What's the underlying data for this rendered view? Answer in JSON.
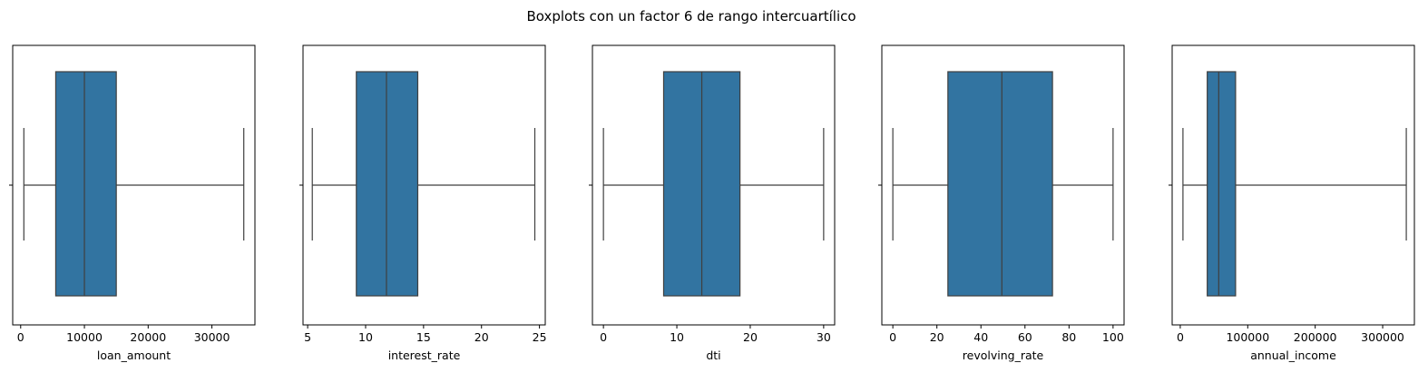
{
  "title": "Boxplots con un factor 6 de rango intercuartílico",
  "box_color": "#3274a1",
  "line_color": "#3f3f3f",
  "chart_data": [
    {
      "type": "box",
      "xlabel": "loan_amount",
      "xlim": [
        -1250,
        36750
      ],
      "ticks": [
        0,
        10000,
        20000,
        30000
      ],
      "tick_labels": [
        "0",
        "10000",
        "20000",
        "30000"
      ],
      "whisker_low": 500,
      "q1": 5500,
      "median": 10000,
      "q3": 15000,
      "whisker_high": 35000
    },
    {
      "type": "box",
      "xlabel": "interest_rate",
      "xlim": [
        4.6,
        25.5
      ],
      "ticks": [
        5,
        10,
        15,
        20,
        25
      ],
      "tick_labels": [
        "5",
        "10",
        "15",
        "20",
        "25"
      ],
      "whisker_low": 5.4,
      "q1": 9.2,
      "median": 11.8,
      "q3": 14.5,
      "whisker_high": 24.6
    },
    {
      "type": "box",
      "xlabel": "dti",
      "xlim": [
        -1.5,
        31.5
      ],
      "ticks": [
        0,
        10,
        20,
        30
      ],
      "tick_labels": [
        "0",
        "10",
        "20",
        "30"
      ],
      "whisker_low": 0,
      "q1": 8.2,
      "median": 13.4,
      "q3": 18.6,
      "whisker_high": 30
    },
    {
      "type": "box",
      "xlabel": "revolving_rate",
      "xlim": [
        -5,
        105
      ],
      "ticks": [
        0,
        20,
        40,
        60,
        80,
        100
      ],
      "tick_labels": [
        "0",
        "20",
        "40",
        "60",
        "80",
        "100"
      ],
      "whisker_low": 0,
      "q1": 25,
      "median": 49.5,
      "q3": 72.5,
      "whisker_high": 100
    },
    {
      "type": "box",
      "xlabel": "annual_income",
      "xlim": [
        -12000,
        347000
      ],
      "ticks": [
        0,
        100000,
        200000,
        300000
      ],
      "tick_labels": [
        "0",
        "100000",
        "200000",
        "300000"
      ],
      "whisker_low": 4000,
      "q1": 40000,
      "median": 57000,
      "q3": 82000,
      "whisker_high": 335000
    }
  ]
}
